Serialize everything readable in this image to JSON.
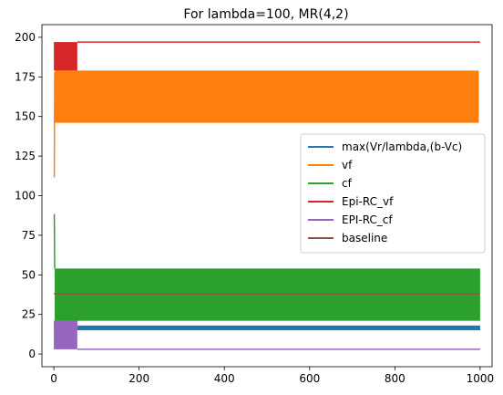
{
  "chart_data": {
    "type": "line",
    "title": "For lambda=100, MR(4,2)",
    "xlabel": "",
    "ylabel": "",
    "xlim": [
      -28,
      1028
    ],
    "ylim": [
      -8,
      208
    ],
    "xticks": [
      0,
      200,
      400,
      600,
      800,
      1000
    ],
    "yticks": [
      0,
      25,
      50,
      75,
      100,
      125,
      150,
      175,
      200
    ],
    "grid": false,
    "legend_position": "center-right",
    "series": [
      {
        "name": "max(Vr/lambda,(b-Vc)",
        "color": "#1f77b4",
        "style": "band",
        "bands": [
          {
            "x_start": 0,
            "x_end": 55,
            "low": 16,
            "high": 21
          },
          {
            "x_start": 55,
            "x_end": 1000,
            "low": 15,
            "high": 18
          }
        ]
      },
      {
        "name": "vf",
        "color": "#ff7f0e",
        "style": "band",
        "initial": [
          [
            0,
            112
          ],
          [
            1,
            112
          ],
          [
            2,
            178
          ]
        ],
        "bands": [
          {
            "x_start": 2,
            "x_end": 997,
            "low": 146,
            "high": 179
          }
        ]
      },
      {
        "name": "cf",
        "color": "#2ca02c",
        "style": "band",
        "initial": [
          [
            0,
            88
          ],
          [
            1,
            88
          ],
          [
            2,
            54
          ]
        ],
        "bands": [
          {
            "x_start": 2,
            "x_end": 1000,
            "low": 21,
            "high": 54
          }
        ]
      },
      {
        "name": "Epi-RC_vf",
        "color": "#d62728",
        "style": "band",
        "bands": [
          {
            "x_start": 0,
            "x_end": 55,
            "low": 179,
            "high": 197
          }
        ],
        "line": [
          [
            55,
            197
          ],
          [
            1000,
            197
          ]
        ]
      },
      {
        "name": "EPI-RC_cf",
        "color": "#9467bd",
        "style": "band",
        "bands": [
          {
            "x_start": 0,
            "x_end": 55,
            "low": 3,
            "high": 21
          }
        ],
        "line": [
          [
            55,
            3
          ],
          [
            1000,
            3
          ]
        ]
      },
      {
        "name": "baseline",
        "color": "#8c564b",
        "style": "line",
        "line": [
          [
            0,
            38
          ],
          [
            1000,
            38
          ]
        ]
      }
    ]
  }
}
